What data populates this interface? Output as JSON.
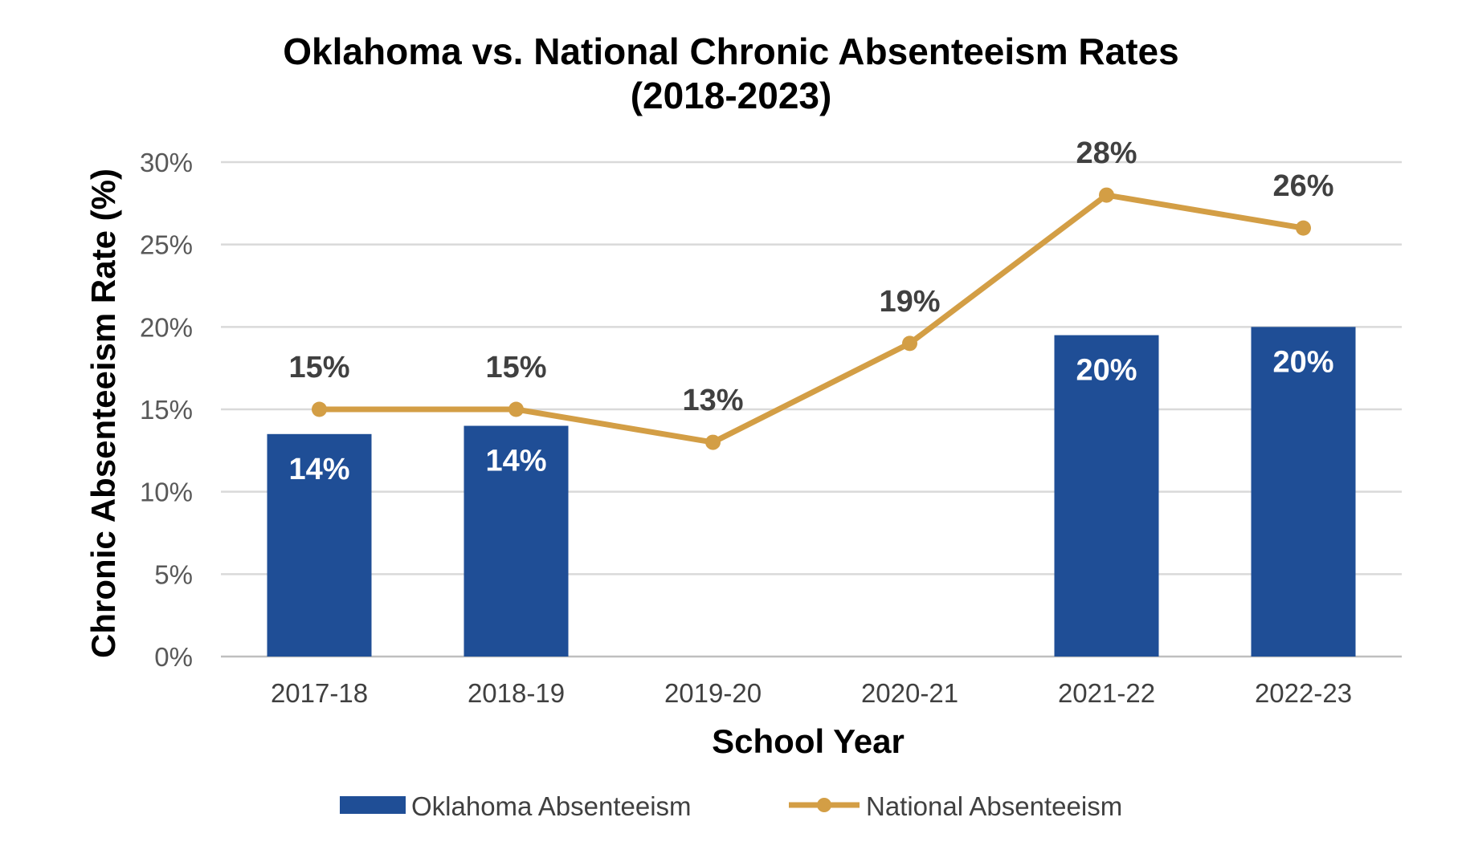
{
  "chart_data": {
    "type": "bar",
    "title_line1": "Oklahoma vs. National Chronic Absenteeism Rates",
    "title_line2": "(2018-2023)",
    "xlabel": "School Year",
    "ylabel": "Chronic Absenteeism Rate (%)",
    "ylim": [
      0,
      30
    ],
    "y_ticks": [
      "0%",
      "5%",
      "10%",
      "15%",
      "20%",
      "25%",
      "30%"
    ],
    "y_tick_values": [
      0,
      5,
      10,
      15,
      20,
      25,
      30
    ],
    "grid": true,
    "legend_position": "bottom",
    "categories": [
      "2017-18",
      "2018-19",
      "2019-20",
      "2020-21",
      "2021-22",
      "2022-23"
    ],
    "series": [
      {
        "name": "Oklahoma Absenteeism",
        "kind": "bar",
        "color": "#1F4E96",
        "values": [
          13.5,
          14,
          null,
          null,
          19.5,
          20
        ],
        "labels": [
          "14%",
          "14%",
          "",
          "",
          "20%",
          "20%"
        ]
      },
      {
        "name": "National Absenteeism",
        "kind": "line",
        "color": "#D39E45",
        "values": [
          15,
          15,
          13,
          19,
          28,
          26
        ],
        "labels": [
          "15%",
          "15%",
          "13%",
          "19%",
          "28%",
          "26%"
        ]
      }
    ]
  }
}
